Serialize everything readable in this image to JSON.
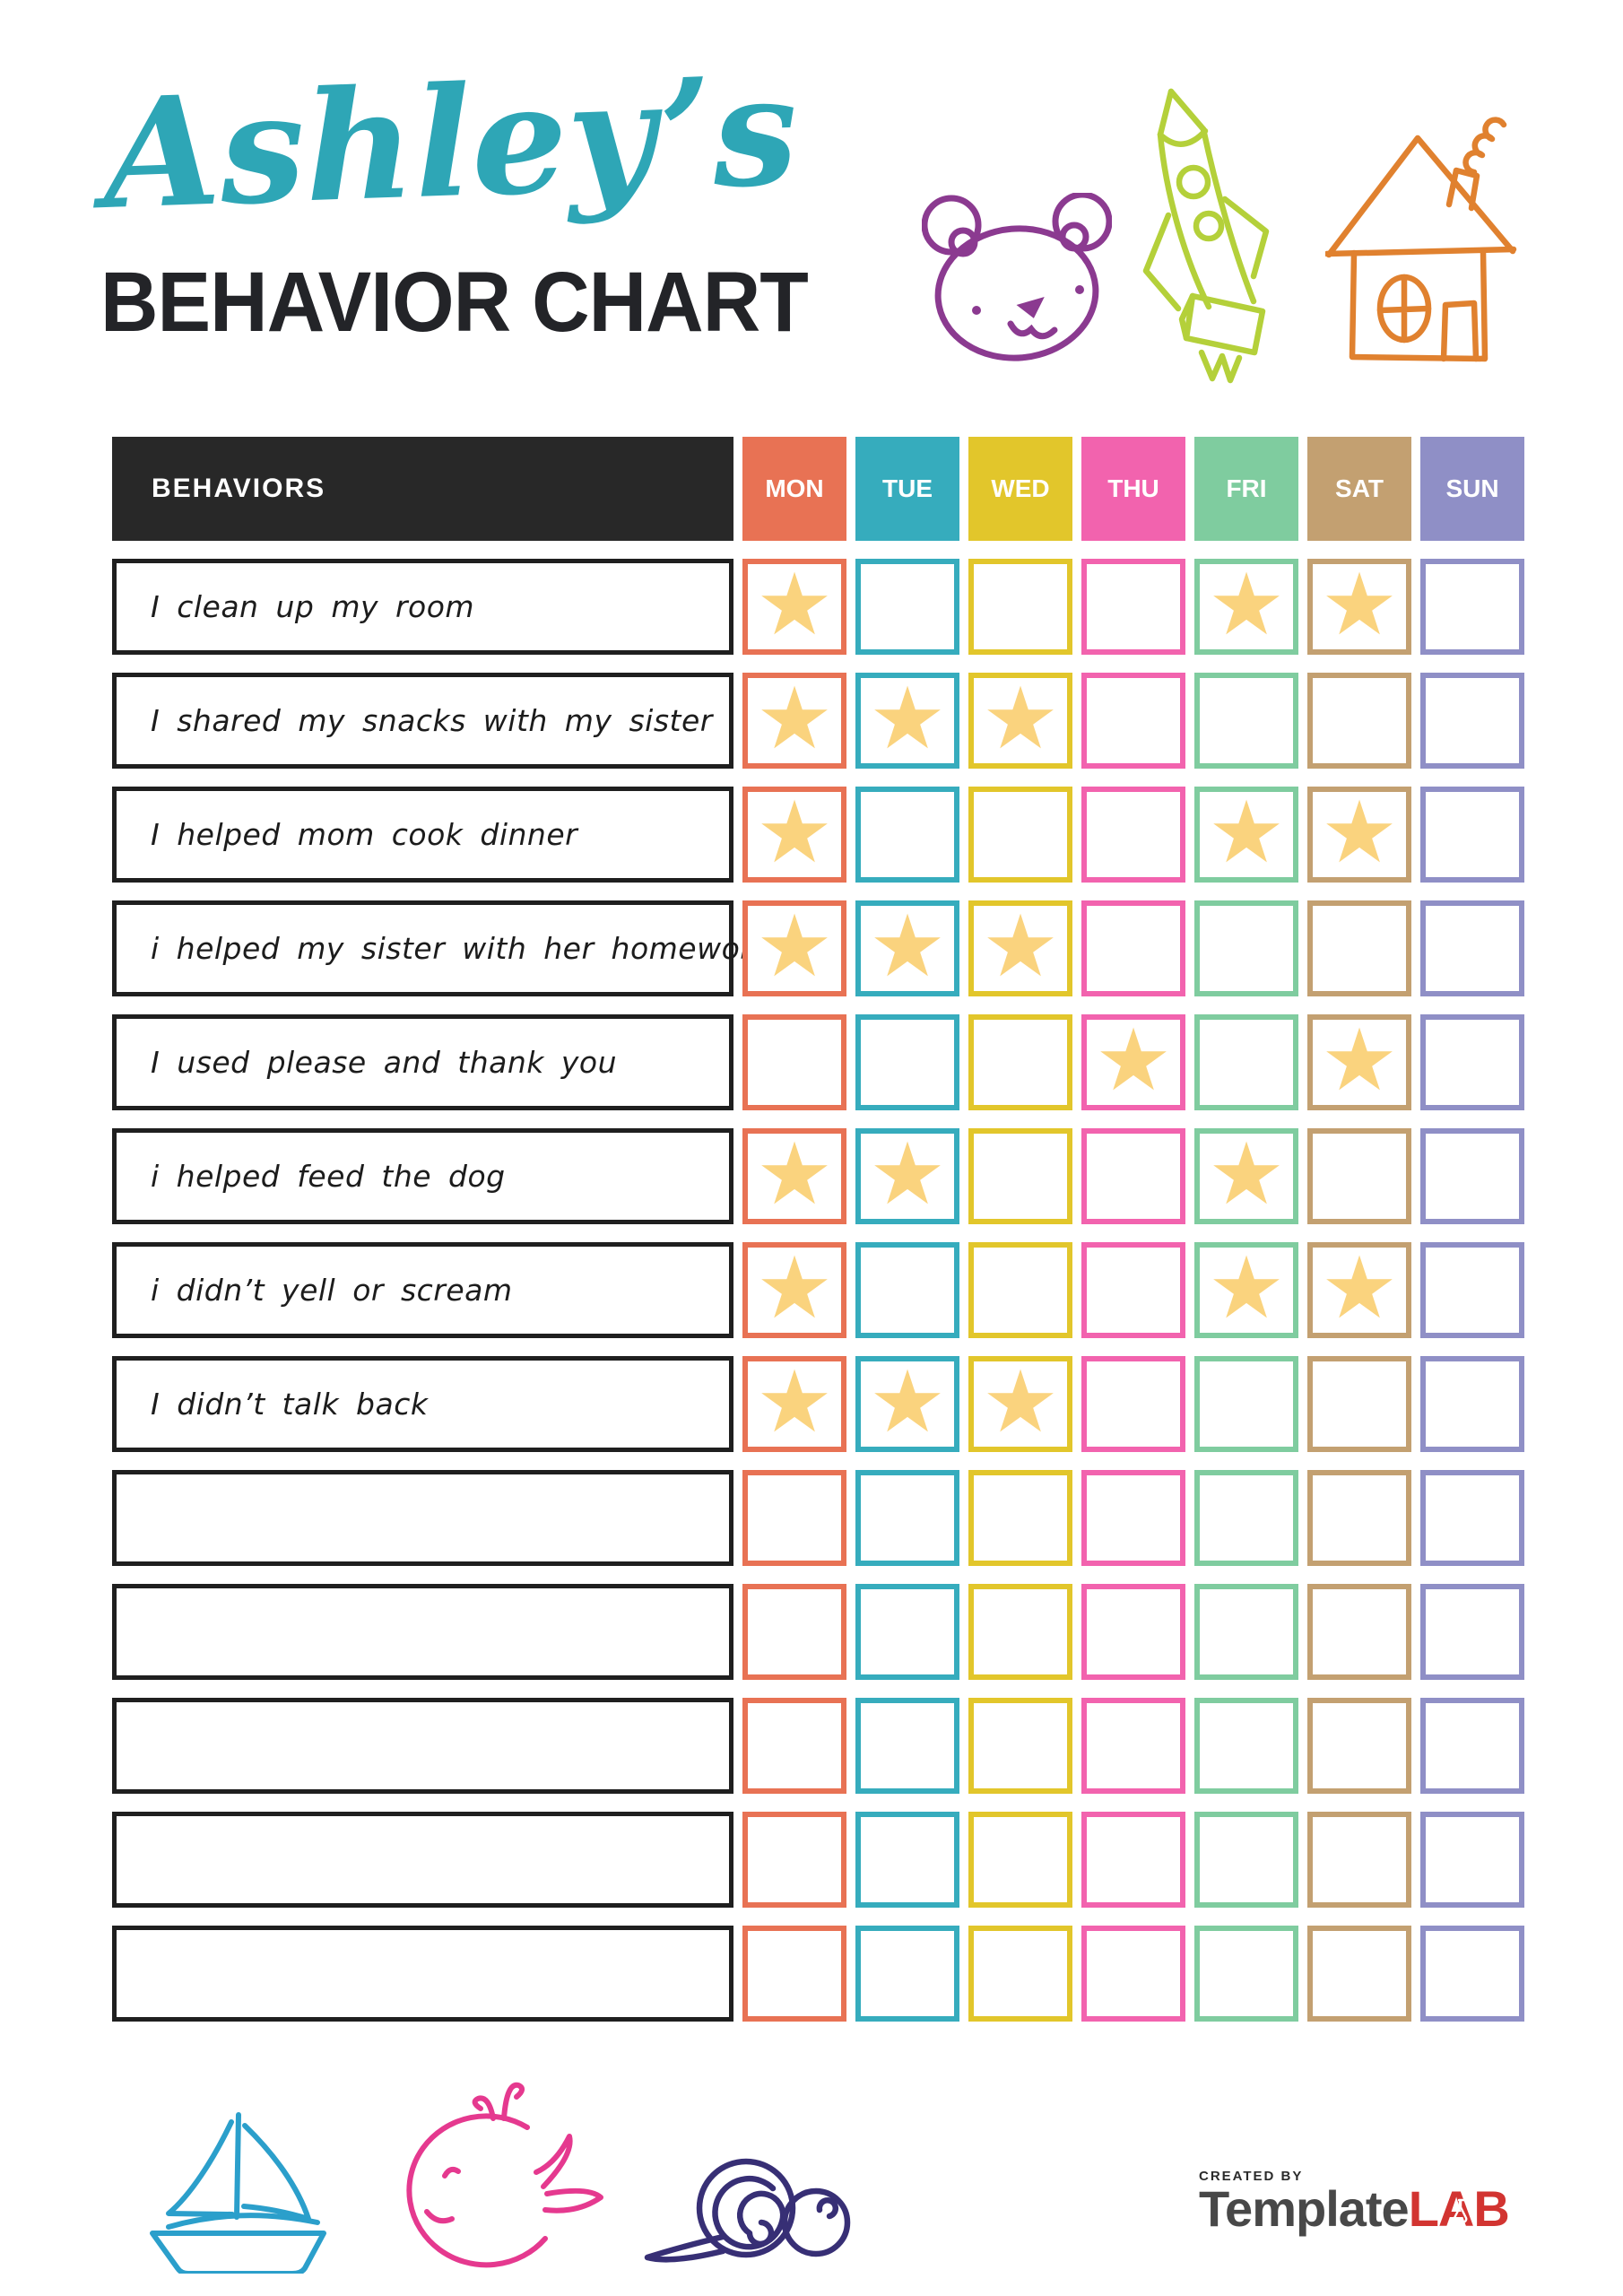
{
  "header": {
    "owner_name": "Ashley’s",
    "title": "BEHAVIOR CHART"
  },
  "table": {
    "behaviors_header": "BEHAVIORS",
    "header_bg": "#282828",
    "star_glyph": "★",
    "star_color": "#FAD37E",
    "days": [
      {
        "label": "MON",
        "color": "#E87254"
      },
      {
        "label": "TUE",
        "color": "#36ACBD"
      },
      {
        "label": "WED",
        "color": "#E2C62B"
      },
      {
        "label": "THU",
        "color": "#F263AE"
      },
      {
        "label": "FRI",
        "color": "#7FCC9F"
      },
      {
        "label": "SAT",
        "color": "#C3A071"
      },
      {
        "label": "SUN",
        "color": "#8F8FC6"
      }
    ],
    "rows": [
      {
        "label": "I clean up my room",
        "stars": [
          "MON",
          "FRI",
          "SAT"
        ]
      },
      {
        "label": "I shared my snacks with my sister",
        "stars": [
          "MON",
          "TUE",
          "WED"
        ]
      },
      {
        "label": "I helped mom cook dinner",
        "stars": [
          "MON",
          "FRI",
          "SAT"
        ]
      },
      {
        "label": "i helped my sister with her homework",
        "stars": [
          "MON",
          "TUE",
          "WED"
        ]
      },
      {
        "label": "I used please and thank you",
        "stars": [
          "THU",
          "SAT"
        ]
      },
      {
        "label": "i helped feed the dog",
        "stars": [
          "MON",
          "TUE",
          "FRI"
        ]
      },
      {
        "label": "i didn’t yell or scream",
        "stars": [
          "MON",
          "FRI",
          "SAT"
        ]
      },
      {
        "label": "I didn’t talk back",
        "stars": [
          "MON",
          "TUE",
          "WED"
        ]
      },
      {
        "label": "",
        "stars": []
      },
      {
        "label": "",
        "stars": []
      },
      {
        "label": "",
        "stars": []
      },
      {
        "label": "",
        "stars": []
      },
      {
        "label": "",
        "stars": []
      }
    ]
  },
  "colors": {
    "title_teal": "#2EA6B6",
    "heading_black": "#232428",
    "bear": "#8B3A90",
    "rocket": "#B4D03A",
    "house": "#E0812F",
    "sailboat": "#2B9FCB",
    "whale": "#E5398F",
    "snail": "#372F75",
    "brand_red": "#D23431"
  },
  "footer": {
    "created_by": "CREATED BY",
    "brand_name": "Template",
    "brand_suffix": "LAB"
  }
}
